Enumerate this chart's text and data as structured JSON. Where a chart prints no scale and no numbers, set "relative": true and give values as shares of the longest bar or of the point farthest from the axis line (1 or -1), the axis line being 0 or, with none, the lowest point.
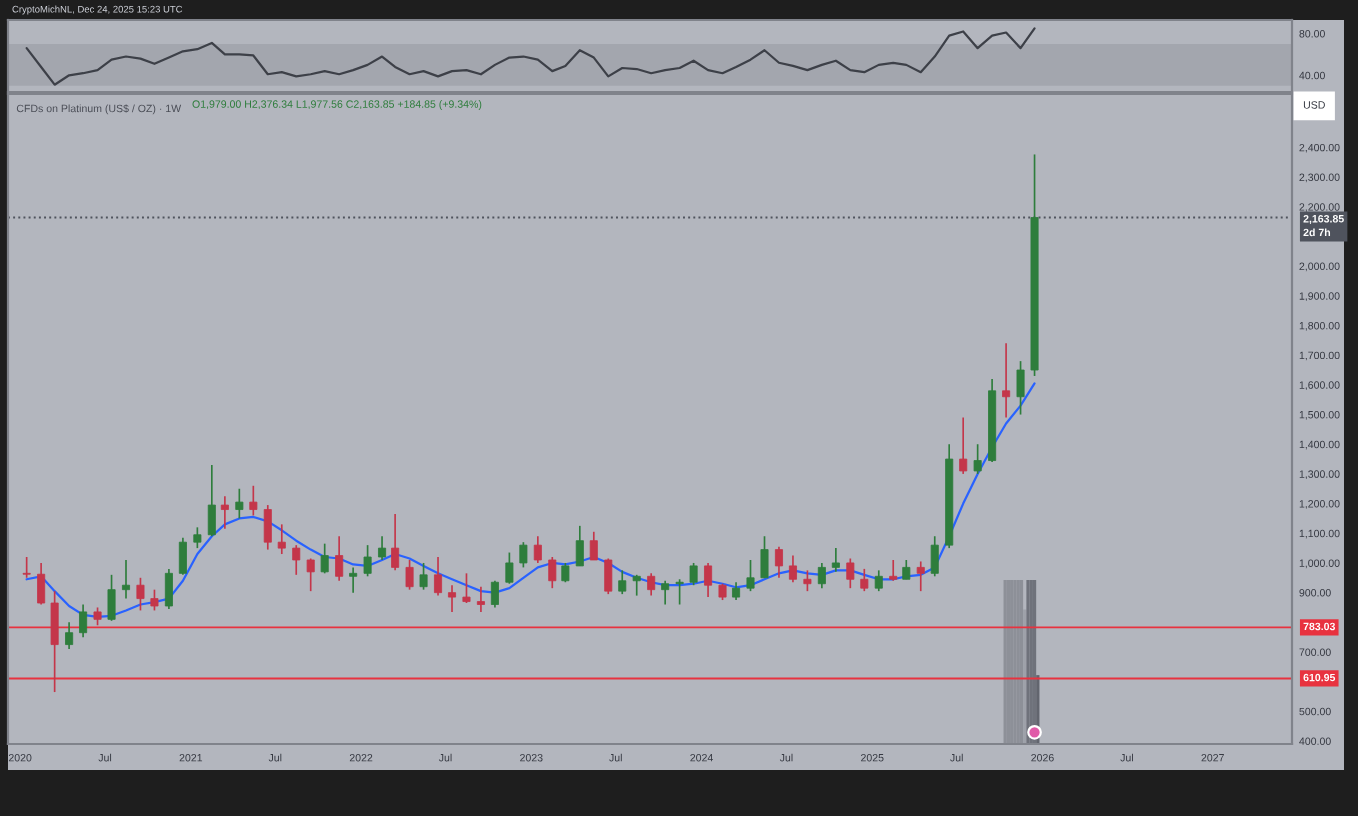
{
  "chart_data": [
    {
      "type": "line",
      "annotations": [
        "CryptoMichNL, Dec 24, 2025 15:23 UTC"
      ],
      "x": [
        "2020-01-15",
        "2020-02-15",
        "2020-03-15",
        "2020-04-15",
        "2020-05-15",
        "2020-06-15",
        "2020-07-15",
        "2020-08-15",
        "2020-09-15",
        "2020-10-15",
        "2020-11-15",
        "2020-12-15",
        "2021-01-15",
        "2021-02-15",
        "2021-03-15",
        "2021-04-15",
        "2021-05-15",
        "2021-06-15",
        "2021-07-15",
        "2021-08-15",
        "2021-09-15",
        "2021-10-15",
        "2021-11-15",
        "2021-12-15",
        "2022-01-15",
        "2022-02-15",
        "2022-03-15",
        "2022-04-15",
        "2022-05-15",
        "2022-06-15",
        "2022-07-15",
        "2022-08-15",
        "2022-09-15",
        "2022-10-15",
        "2022-11-15",
        "2022-12-15",
        "2023-01-15",
        "2023-02-15",
        "2023-03-15",
        "2023-04-15",
        "2023-05-15",
        "2023-06-15",
        "2023-07-15",
        "2023-08-15",
        "2023-09-15",
        "2023-10-15",
        "2023-11-15",
        "2023-12-15",
        "2024-01-15",
        "2024-02-15",
        "2024-03-15",
        "2024-04-15",
        "2024-05-15",
        "2024-06-15",
        "2024-07-15",
        "2024-08-15",
        "2024-09-15",
        "2024-10-15",
        "2024-11-15",
        "2024-12-15",
        "2025-01-15",
        "2025-02-15",
        "2025-03-15",
        "2025-04-15",
        "2025-05-15",
        "2025-06-15",
        "2025-07-15",
        "2025-08-15",
        "2025-09-15",
        "2025-10-15",
        "2025-11-15",
        "2025-12-15"
      ],
      "values": [
        66,
        48,
        31,
        40,
        42,
        45,
        55,
        58,
        56,
        51,
        57,
        63,
        65,
        71,
        60,
        60,
        59,
        41,
        43,
        39,
        41,
        44,
        41,
        45,
        50,
        58,
        48,
        41,
        44,
        39,
        44,
        45,
        41,
        50,
        57,
        58,
        55,
        44,
        49,
        64,
        57,
        39,
        47,
        46,
        42,
        45,
        47,
        54,
        45,
        42,
        48,
        55,
        64,
        52,
        49,
        45,
        50,
        54,
        45,
        43,
        50,
        52,
        50,
        43,
        58,
        78,
        82,
        66,
        78,
        81,
        66,
        85
      ],
      "color": "#3d4048",
      "xlim": [
        "2019-12-06",
        "2027-06-20"
      ],
      "ylim": [
        24,
        93
      ],
      "yticks": [
        {
          "value": 80,
          "label": "80.00"
        },
        {
          "value": 40,
          "label": "40.00"
        }
      ],
      "bands": [
        {
          "axis": "y",
          "from": 30,
          "to": 70,
          "color": "#a3a6ae"
        }
      ],
      "tick_labels": "y"
    },
    {
      "type": "candlestick",
      "title": "CFDs on Platinum (US$ / OZ) · 1W",
      "ylabel": "USD",
      "annotations": [
        "O1,979.00 H2,376.34 L1,977.56 C2,163.85 +184.85 (+9.34%)"
      ],
      "x": [
        "2020-01-15",
        "2020-02-15",
        "2020-03-15",
        "2020-04-15",
        "2020-05-15",
        "2020-06-15",
        "2020-07-15",
        "2020-08-15",
        "2020-09-15",
        "2020-10-15",
        "2020-11-15",
        "2020-12-15",
        "2021-01-15",
        "2021-02-15",
        "2021-03-15",
        "2021-04-15",
        "2021-05-15",
        "2021-06-15",
        "2021-07-15",
        "2021-08-15",
        "2021-09-15",
        "2021-10-15",
        "2021-11-15",
        "2021-12-15",
        "2022-01-15",
        "2022-02-15",
        "2022-03-15",
        "2022-04-15",
        "2022-05-15",
        "2022-06-15",
        "2022-07-15",
        "2022-08-15",
        "2022-09-15",
        "2022-10-15",
        "2022-11-15",
        "2022-12-15",
        "2023-01-15",
        "2023-02-15",
        "2023-03-15",
        "2023-04-15",
        "2023-05-15",
        "2023-06-15",
        "2023-07-15",
        "2023-08-15",
        "2023-09-15",
        "2023-10-15",
        "2023-11-15",
        "2023-12-15",
        "2024-01-15",
        "2024-02-15",
        "2024-03-15",
        "2024-04-15",
        "2024-05-15",
        "2024-06-15",
        "2024-07-15",
        "2024-08-15",
        "2024-09-15",
        "2024-10-15",
        "2024-11-15",
        "2024-12-15",
        "2025-01-15",
        "2025-02-15",
        "2025-03-15",
        "2025-04-15",
        "2025-05-15",
        "2025-06-15",
        "2025-07-15",
        "2025-08-15",
        "2025-09-15",
        "2025-10-15",
        "2025-11-15",
        "2025-12-15"
      ],
      "ohlc": [
        [
          965,
          1020,
          950,
          962
        ],
        [
          962,
          1000,
          860,
          865
        ],
        [
          865,
          905,
          565,
          725
        ],
        [
          725,
          800,
          710,
          765
        ],
        [
          765,
          860,
          750,
          835
        ],
        [
          835,
          850,
          790,
          810
        ],
        [
          810,
          960,
          805,
          910
        ],
        [
          910,
          1010,
          880,
          925
        ],
        [
          925,
          950,
          840,
          880
        ],
        [
          880,
          910,
          840,
          855
        ],
        [
          855,
          980,
          845,
          965
        ],
        [
          965,
          1085,
          960,
          1070
        ],
        [
          1070,
          1120,
          1050,
          1095
        ],
        [
          1095,
          1330,
          1090,
          1195
        ],
        [
          1195,
          1225,
          1115,
          1180
        ],
        [
          1180,
          1250,
          1150,
          1205
        ],
        [
          1205,
          1260,
          1160,
          1180
        ],
        [
          1180,
          1195,
          1045,
          1070
        ],
        [
          1070,
          1130,
          1030,
          1050
        ],
        [
          1050,
          1060,
          960,
          1010
        ],
        [
          1010,
          1015,
          905,
          970
        ],
        [
          970,
          1065,
          965,
          1025
        ],
        [
          1025,
          1090,
          940,
          955
        ],
        [
          955,
          985,
          900,
          965
        ],
        [
          965,
          1060,
          955,
          1020
        ],
        [
          1020,
          1090,
          1010,
          1050
        ],
        [
          1050,
          1165,
          975,
          985
        ],
        [
          985,
          1010,
          910,
          920
        ],
        [
          920,
          1000,
          910,
          960
        ],
        [
          960,
          1020,
          890,
          900
        ],
        [
          900,
          925,
          835,
          885
        ],
        [
          885,
          965,
          865,
          870
        ],
        [
          870,
          920,
          835,
          860
        ],
        [
          860,
          940,
          850,
          935
        ],
        [
          935,
          1035,
          930,
          1000
        ],
        [
          1000,
          1070,
          985,
          1060
        ],
        [
          1060,
          1090,
          1000,
          1010
        ],
        [
          1010,
          1020,
          915,
          940
        ],
        [
          940,
          1000,
          935,
          990
        ],
        [
          990,
          1125,
          990,
          1075
        ],
        [
          1075,
          1105,
          1010,
          1010
        ],
        [
          1010,
          1015,
          895,
          905
        ],
        [
          905,
          975,
          895,
          940
        ],
        [
          940,
          960,
          890,
          955
        ],
        [
          955,
          965,
          890,
          910
        ],
        [
          910,
          940,
          860,
          930
        ],
        [
          930,
          945,
          860,
          935
        ],
        [
          935,
          1000,
          925,
          990
        ],
        [
          990,
          1000,
          885,
          925
        ],
        [
          925,
          930,
          875,
          885
        ],
        [
          885,
          935,
          875,
          915
        ],
        [
          915,
          1010,
          905,
          950
        ],
        [
          950,
          1090,
          950,
          1045
        ],
        [
          1045,
          1055,
          950,
          990
        ],
        [
          990,
          1025,
          935,
          945
        ],
        [
          945,
          975,
          905,
          930
        ],
        [
          930,
          1000,
          915,
          985
        ],
        [
          985,
          1050,
          970,
          1000
        ],
        [
          1000,
          1015,
          915,
          945
        ],
        [
          945,
          980,
          905,
          915
        ],
        [
          915,
          975,
          905,
          955
        ],
        [
          955,
          1010,
          940,
          945
        ],
        [
          945,
          1010,
          945,
          985
        ],
        [
          985,
          1005,
          905,
          965
        ],
        [
          965,
          1090,
          955,
          1060
        ],
        [
          1060,
          1400,
          1050,
          1350
        ],
        [
          1350,
          1490,
          1300,
          1310
        ],
        [
          1310,
          1400,
          1300,
          1345
        ],
        [
          1345,
          1620,
          1340,
          1580
        ],
        [
          1580,
          1740,
          1490,
          1560
        ],
        [
          1560,
          1680,
          1500,
          1650
        ],
        [
          1650,
          2376.34,
          1630,
          2163.85
        ]
      ],
      "colors": [
        "#c4364a",
        "#c4364a",
        "#c4364a",
        "#2e7d3c",
        "#2e7d3c",
        "#c4364a",
        "#2e7d3c",
        "#2e7d3c",
        "#c4364a",
        "#c4364a",
        "#2e7d3c",
        "#2e7d3c",
        "#2e7d3c",
        "#2e7d3c",
        "#c4364a",
        "#2e7d3c",
        "#c4364a",
        "#c4364a",
        "#c4364a",
        "#c4364a",
        "#c4364a",
        "#2e7d3c",
        "#c4364a",
        "#2e7d3c",
        "#2e7d3c",
        "#2e7d3c",
        "#c4364a",
        "#c4364a",
        "#2e7d3c",
        "#c4364a",
        "#c4364a",
        "#c4364a",
        "#c4364a",
        "#2e7d3c",
        "#2e7d3c",
        "#2e7d3c",
        "#c4364a",
        "#c4364a",
        "#2e7d3c",
        "#2e7d3c",
        "#c4364a",
        "#c4364a",
        "#2e7d3c",
        "#2e7d3c",
        "#c4364a",
        "#2e7d3c",
        "#2e7d3c",
        "#2e7d3c",
        "#c4364a",
        "#c4364a",
        "#2e7d3c",
        "#2e7d3c",
        "#2e7d3c",
        "#c4364a",
        "#c4364a",
        "#c4364a",
        "#2e7d3c",
        "#2e7d3c",
        "#c4364a",
        "#c4364a",
        "#2e7d3c",
        "#c4364a",
        "#2e7d3c",
        "#c4364a",
        "#2e7d3c",
        "#2e7d3c",
        "#c4364a",
        "#2e7d3c",
        "#2e7d3c",
        "#c4364a",
        "#2e7d3c",
        "#2e7d3c"
      ],
      "series": [
        {
          "type": "line",
          "color": "#2962ff",
          "values": [
            945,
            955,
            905,
            855,
            825,
            818,
            822,
            840,
            860,
            868,
            880,
            940,
            1030,
            1090,
            1130,
            1150,
            1155,
            1140,
            1110,
            1075,
            1045,
            1020,
            1015,
            995,
            990,
            1010,
            1030,
            1015,
            990,
            965,
            945,
            925,
            905,
            900,
            915,
            950,
            985,
            1000,
            995,
            1005,
            1020,
            1000,
            970,
            950,
            935,
            925,
            925,
            930,
            940,
            930,
            918,
            925,
            945,
            965,
            975,
            965,
            960,
            975,
            975,
            960,
            945,
            945,
            955,
            960,
            985,
            1090,
            1200,
            1300,
            1390,
            1470,
            1530,
            1605
          ]
        }
      ],
      "xlim": [
        "2019-12-06",
        "2027-06-20"
      ],
      "ylim": [
        390,
        2580
      ],
      "xticks": [
        {
          "value": "2020-01-01",
          "label": "2020"
        },
        {
          "value": "2020-07-01",
          "label": "Jul"
        },
        {
          "value": "2021-01-01",
          "label": "2021"
        },
        {
          "value": "2021-07-01",
          "label": "Jul"
        },
        {
          "value": "2022-01-01",
          "label": "2022"
        },
        {
          "value": "2022-07-01",
          "label": "Jul"
        },
        {
          "value": "2023-01-01",
          "label": "2023"
        },
        {
          "value": "2023-07-01",
          "label": "Jul"
        },
        {
          "value": "2024-01-01",
          "label": "2024"
        },
        {
          "value": "2024-07-01",
          "label": "Jul"
        },
        {
          "value": "2025-01-01",
          "label": "2025"
        },
        {
          "value": "2025-07-01",
          "label": "Jul"
        },
        {
          "value": "2026-01-01",
          "label": "2026"
        },
        {
          "value": "2026-07-01",
          "label": "Jul"
        },
        {
          "value": "2027-01-01",
          "label": "2027"
        }
      ],
      "yticks": [
        {
          "value": 400,
          "label": "400.00"
        },
        {
          "value": 500,
          "label": "500.00"
        },
        {
          "value": 700,
          "label": "700.00"
        },
        {
          "value": 900,
          "label": "900.00"
        },
        {
          "value": 1000,
          "label": "1,000.00"
        },
        {
          "value": 1100,
          "label": "1,100.00"
        },
        {
          "value": 1200,
          "label": "1,200.00"
        },
        {
          "value": 1300,
          "label": "1,300.00"
        },
        {
          "value": 1400,
          "label": "1,400.00"
        },
        {
          "value": 1500,
          "label": "1,500.00"
        },
        {
          "value": 1600,
          "label": "1,600.00"
        },
        {
          "value": 1700,
          "label": "1,700.00"
        },
        {
          "value": 1800,
          "label": "1,800.00"
        },
        {
          "value": 1900,
          "label": "1,900.00"
        },
        {
          "value": 2000,
          "label": "2,000.00"
        },
        {
          "value": 2200,
          "label": "2,200.00"
        },
        {
          "value": 2300,
          "label": "2,300.00"
        },
        {
          "value": 2400,
          "label": "2,400.00"
        }
      ],
      "ref_lines": [
        {
          "axis": "y",
          "value": 783.03,
          "label": "783.03",
          "color": "#e8323f"
        },
        {
          "axis": "y",
          "value": 610.95,
          "label": "610.95",
          "color": "#e8323f"
        },
        {
          "axis": "y",
          "value": 2163.85,
          "label": "2,163.85\n2d 7h",
          "color": "#4f535d",
          "line_style": "dotted"
        }
      ]
    },
    {
      "type": "bar",
      "relative": true,
      "x": [
        "2025-10-13",
        "2025-10-20",
        "2025-10-27",
        "2025-11-03",
        "2025-11-10",
        "2025-11-17",
        "2025-11-24",
        "2025-12-01",
        "2025-12-08",
        "2025-12-15",
        "2025-12-22"
      ],
      "values": [
        1,
        1,
        1,
        1,
        1,
        1,
        0.82,
        1,
        1,
        1,
        0.42
      ],
      "colors": [
        "#8d9098",
        "#8d9098",
        "#8d9098",
        "#8d9098",
        "#8d9098",
        "#8d9098",
        "#9ea1a9",
        "#6f727b",
        "#6f727b",
        "#6f727b",
        "#62656e"
      ],
      "xlim": [
        "2019-12-06",
        "2027-06-20"
      ],
      "tick_labels": false
    }
  ]
}
